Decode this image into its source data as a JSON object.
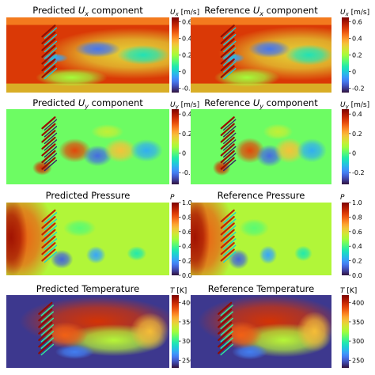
{
  "figure": {
    "panels": [
      {
        "title": "Predicted U<sub>x</sub> component",
        "title_plain": "Predicted",
        "title_sym": "U",
        "title_sub": "x",
        "title_tail": " component",
        "field": "ux",
        "kind": "predicted"
      },
      {
        "title": "Reference U<sub>x</sub> component",
        "title_plain": "Reference",
        "title_sym": "U",
        "title_sub": "x",
        "title_tail": " component",
        "field": "ux",
        "kind": "reference"
      },
      {
        "title": "Predicted U<sub>y</sub> component",
        "title_plain": "Predicted",
        "title_sym": "U",
        "title_sub": "y",
        "title_tail": " component",
        "field": "uy",
        "kind": "predicted"
      },
      {
        "title": "Reference U<sub>y</sub> component",
        "title_plain": "Reference",
        "title_sym": "U",
        "title_sub": "y",
        "title_tail": " component",
        "field": "uy",
        "kind": "reference"
      },
      {
        "title": "Predicted Pressure",
        "title_plain": "Predicted Pressure",
        "title_sym": "",
        "title_sub": "",
        "title_tail": "",
        "field": "p",
        "kind": "predicted"
      },
      {
        "title": "Reference Pressure",
        "title_plain": "Reference Pressure",
        "title_sym": "",
        "title_sub": "",
        "title_tail": "",
        "field": "p",
        "kind": "reference"
      },
      {
        "title": "Predicted Temperature",
        "title_plain": "Predicted Temperature",
        "title_sym": "",
        "title_sub": "",
        "title_tail": "",
        "field": "t",
        "kind": "predicted"
      },
      {
        "title": "Reference Temperature",
        "title_plain": "Reference Temperature",
        "title_sym": "",
        "title_sub": "",
        "title_tail": "",
        "field": "t",
        "kind": "reference"
      }
    ]
  },
  "chart_data": [
    {
      "type": "heatmap",
      "field": "ux",
      "colorbar_label_sym": "U",
      "colorbar_label_sub": "x",
      "colorbar_label_unit": " [m/s]",
      "range": [
        -0.25,
        0.65
      ],
      "ticks": [
        0.6,
        0.4,
        0.2,
        0.0,
        -0.2
      ],
      "tick_labels": [
        "0.6",
        "0.4",
        "0.2",
        "0",
        "-0.2"
      ],
      "colormap": "turbo"
    },
    {
      "type": "heatmap",
      "field": "uy",
      "colorbar_label_sym": "U",
      "colorbar_label_sub": "y",
      "colorbar_label_unit": " [m/s]",
      "range": [
        -0.32,
        0.45
      ],
      "ticks": [
        0.4,
        0.2,
        0.0,
        -0.2
      ],
      "tick_labels": [
        "0.4",
        "0.2",
        "0",
        "-0.2"
      ],
      "colormap": "turbo"
    },
    {
      "type": "heatmap",
      "field": "p",
      "colorbar_label_sym": "P",
      "colorbar_label_sub": "",
      "colorbar_label_unit": "",
      "range": [
        0.0,
        1.0
      ],
      "ticks": [
        1.0,
        0.8,
        0.6,
        0.4,
        0.2,
        0.0
      ],
      "tick_labels": [
        "1.0",
        "0.8",
        "0.6",
        "0.4",
        "0.2",
        "0.0"
      ],
      "colormap": "turbo"
    },
    {
      "type": "heatmap",
      "field": "t",
      "colorbar_label_sym": "T",
      "colorbar_label_sub": "",
      "colorbar_label_unit": " [K]",
      "range": [
        230,
        420
      ],
      "ticks": [
        400,
        350,
        300,
        250
      ],
      "tick_labels": [
        "400",
        "350",
        "300",
        "250"
      ],
      "colormap": "turbo"
    }
  ],
  "colors": {
    "background": "#ffffff",
    "text": "#000000"
  }
}
